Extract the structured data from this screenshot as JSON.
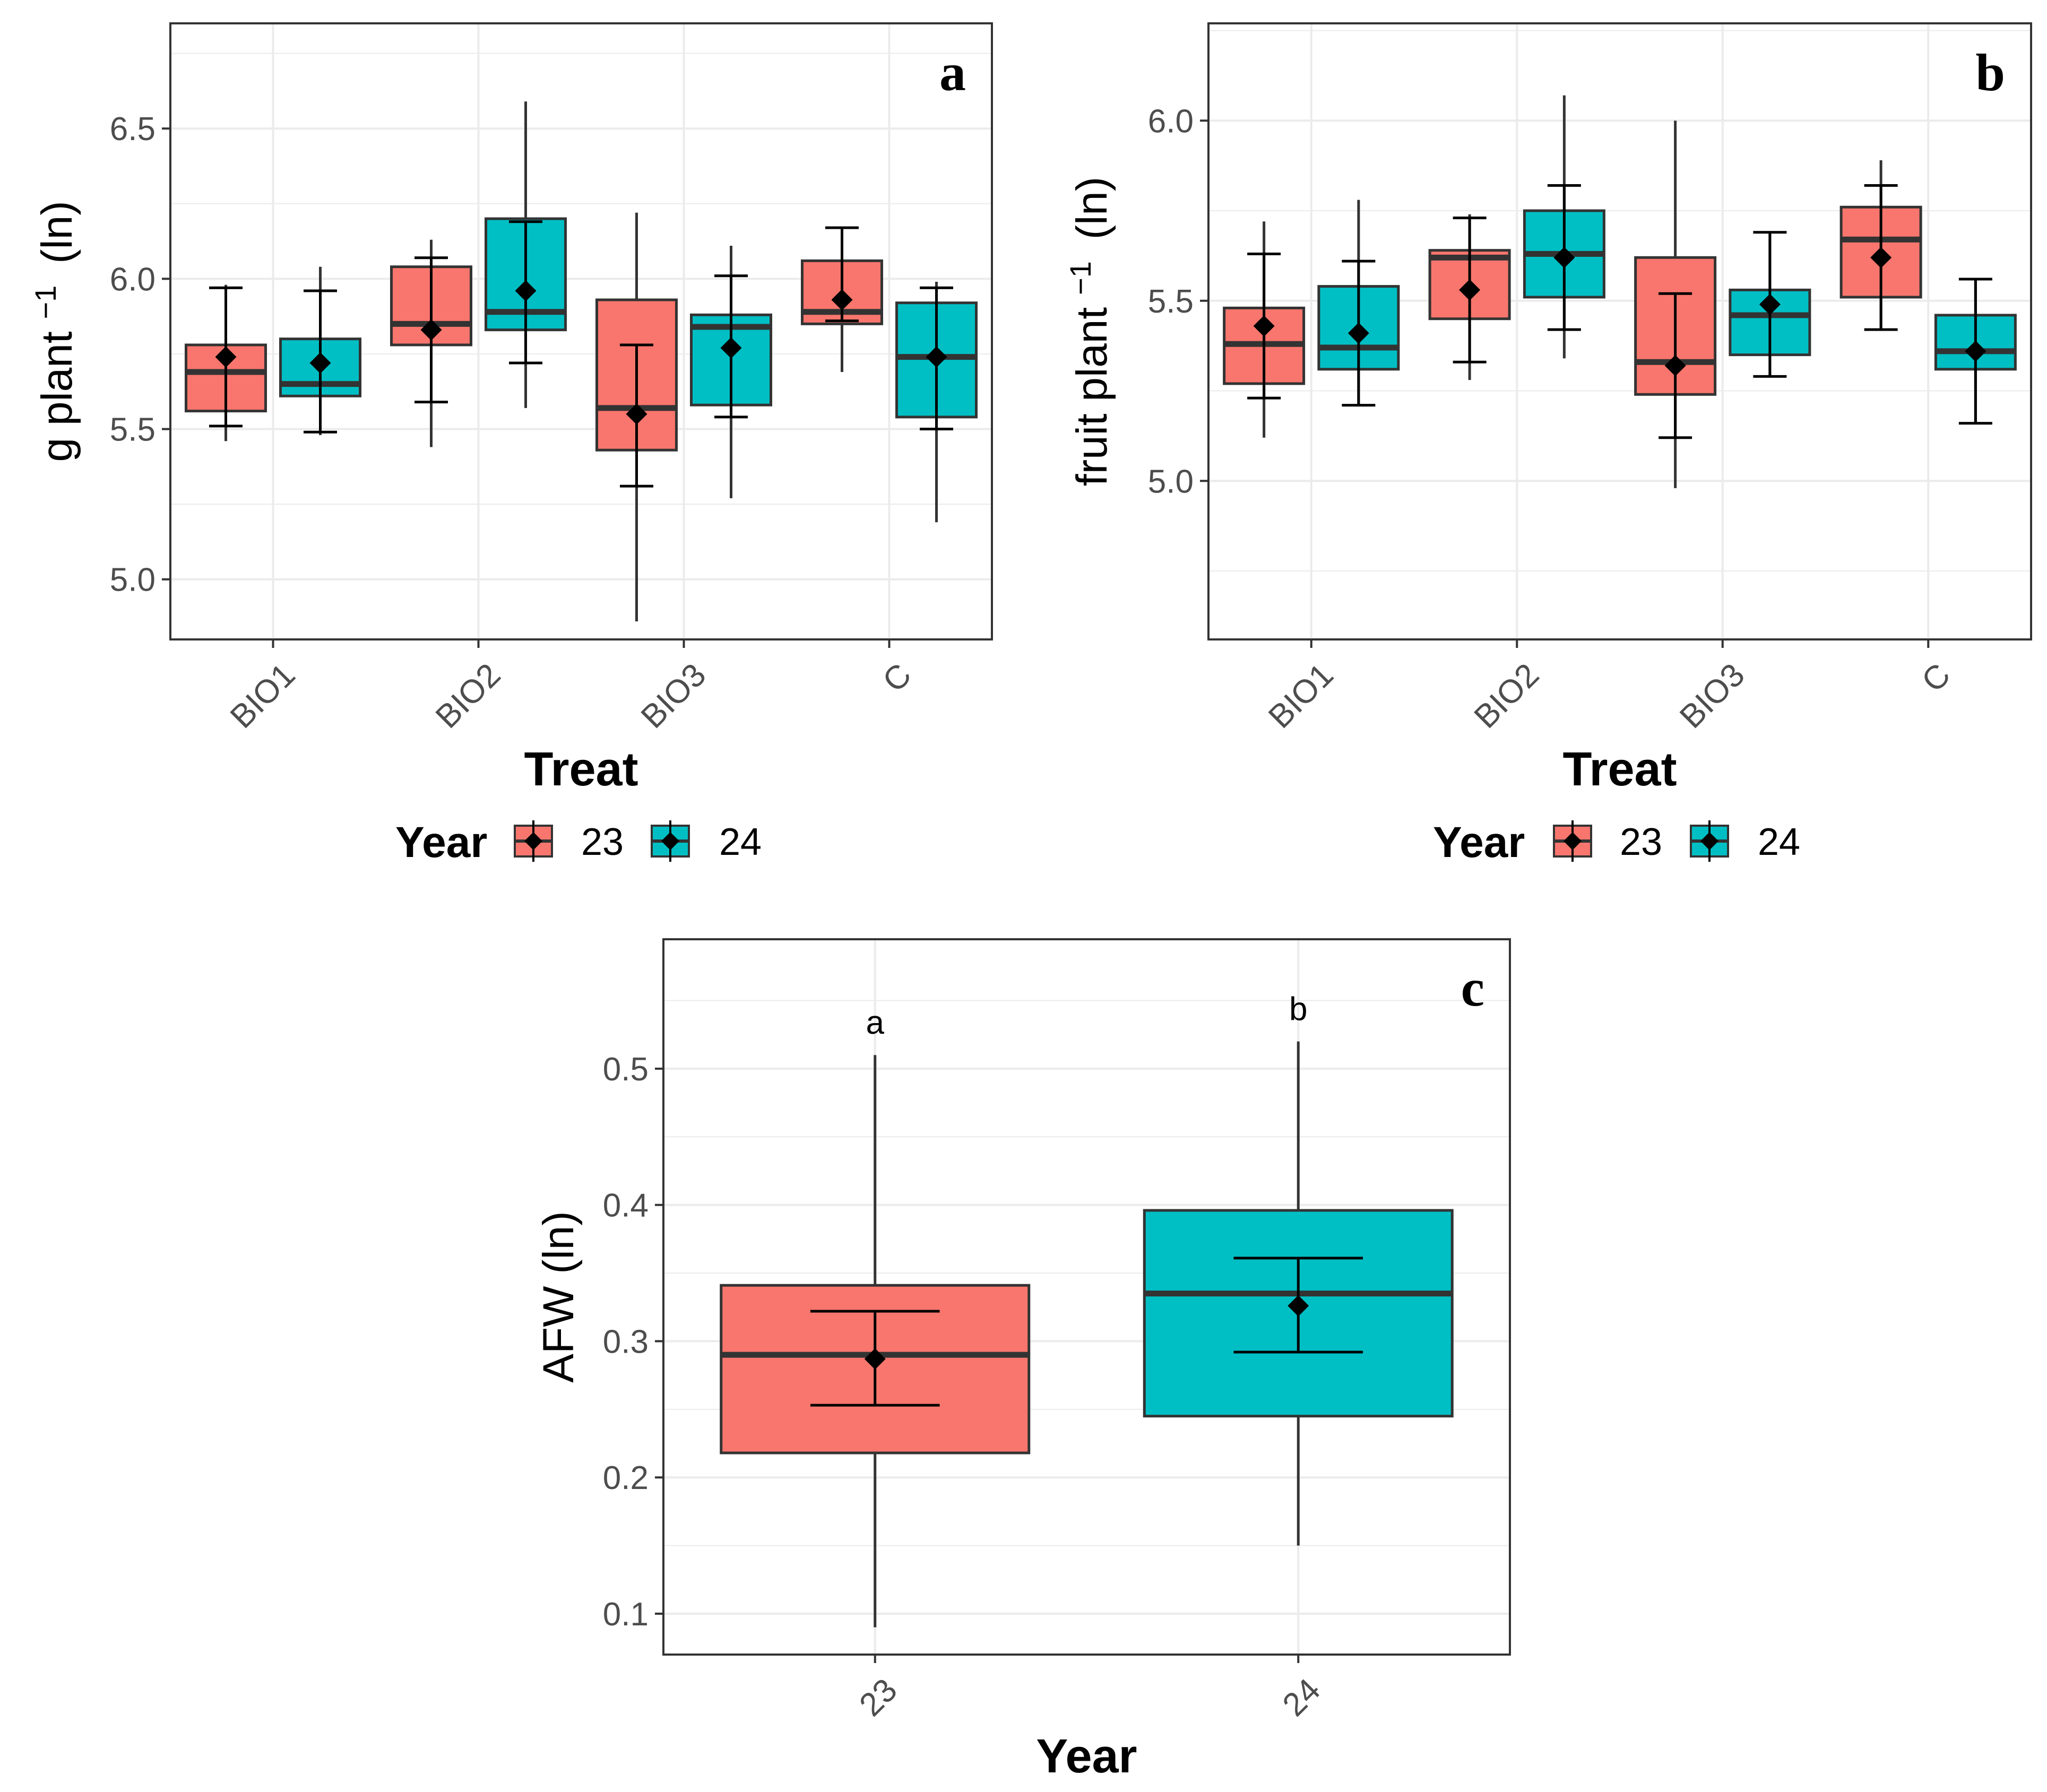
{
  "colors": {
    "year_23": "#F8766D",
    "year_24": "#00BFC4",
    "grid": "#ebebeb",
    "panel_border": "#333333",
    "box_line": "#333333",
    "mean_marker": "#000000"
  },
  "chart_data": [
    {
      "type": "box",
      "panel_label": "a",
      "ylabel": "g plant⁻¹ (ln)",
      "ylabel_main": "g plant",
      "ylabel_sup": "−1",
      "ylabel_unit": "(ln)",
      "xlabel": "Treat",
      "ylim": [
        4.8,
        6.85
      ],
      "yticks": [
        5.0,
        5.5,
        6.0,
        6.5
      ],
      "ytick_labels": [
        "5.0",
        "5.5",
        "6.0",
        "6.5"
      ],
      "categories": [
        "BIO1",
        "BIO2",
        "BIO3",
        "C"
      ],
      "legend": {
        "title": "Year",
        "labels": [
          "23",
          "24"
        ],
        "position": "bottom"
      },
      "series": [
        {
          "name": "23",
          "boxes": [
            {
              "whisker_low": 5.46,
              "q1": 5.56,
              "median": 5.69,
              "q3": 5.78,
              "whisker_high": 5.98,
              "mean": 5.74,
              "ci_low": 5.51,
              "ci_high": 5.97
            },
            {
              "whisker_low": 5.44,
              "q1": 5.78,
              "median": 5.85,
              "q3": 6.04,
              "whisker_high": 6.13,
              "mean": 5.83,
              "ci_low": 5.59,
              "ci_high": 6.07
            },
            {
              "whisker_low": 4.86,
              "q1": 5.43,
              "median": 5.57,
              "q3": 5.93,
              "whisker_high": 6.22,
              "mean": 5.55,
              "ci_low": 5.31,
              "ci_high": 5.78
            },
            {
              "whisker_low": 5.69,
              "q1": 5.85,
              "median": 5.89,
              "q3": 6.06,
              "whisker_high": 6.17,
              "mean": 5.93,
              "ci_low": 5.86,
              "ci_high": 6.17
            }
          ]
        },
        {
          "name": "24",
          "boxes": [
            {
              "whisker_low": 5.48,
              "q1": 5.61,
              "median": 5.65,
              "q3": 5.8,
              "whisker_high": 6.04,
              "mean": 5.72,
              "ci_low": 5.49,
              "ci_high": 5.96
            },
            {
              "whisker_low": 5.57,
              "q1": 5.83,
              "median": 5.89,
              "q3": 6.2,
              "whisker_high": 6.59,
              "mean": 5.96,
              "ci_low": 5.72,
              "ci_high": 6.19
            },
            {
              "whisker_low": 5.27,
              "q1": 5.58,
              "median": 5.84,
              "q3": 5.88,
              "whisker_high": 6.11,
              "mean": 5.77,
              "ci_low": 5.54,
              "ci_high": 6.01
            },
            {
              "whisker_low": 5.19,
              "q1": 5.54,
              "median": 5.74,
              "q3": 5.92,
              "whisker_high": 5.99,
              "mean": 5.74,
              "ci_low": 5.5,
              "ci_high": 5.97
            }
          ]
        }
      ]
    },
    {
      "type": "box",
      "panel_label": "b",
      "ylabel": "fruit plant⁻¹ (ln)",
      "ylabel_main": "fruit plant",
      "ylabel_sup": "−1",
      "ylabel_unit": "(ln)",
      "xlabel": "Treat",
      "ylim": [
        4.56,
        6.27
      ],
      "yticks": [
        5.0,
        5.5,
        6.0
      ],
      "ytick_labels": [
        "5.0",
        "5.5",
        "6.0"
      ],
      "categories": [
        "BIO1",
        "BIO2",
        "BIO3",
        "C"
      ],
      "legend": {
        "title": "Year",
        "labels": [
          "23",
          "24"
        ],
        "position": "bottom"
      },
      "series": [
        {
          "name": "23",
          "boxes": [
            {
              "whisker_low": 5.12,
              "q1": 5.27,
              "median": 5.38,
              "q3": 5.48,
              "whisker_high": 5.72,
              "mean": 5.43,
              "ci_low": 5.23,
              "ci_high": 5.63
            },
            {
              "whisker_low": 5.28,
              "q1": 5.45,
              "median": 5.62,
              "q3": 5.64,
              "whisker_high": 5.74,
              "mean": 5.53,
              "ci_low": 5.33,
              "ci_high": 5.73
            },
            {
              "whisker_low": 4.98,
              "q1": 5.24,
              "median": 5.33,
              "q3": 5.62,
              "whisker_high": 6.0,
              "mean": 5.32,
              "ci_low": 5.12,
              "ci_high": 5.52
            },
            {
              "whisker_low": 5.42,
              "q1": 5.51,
              "median": 5.67,
              "q3": 5.76,
              "whisker_high": 5.89,
              "mean": 5.62,
              "ci_low": 5.42,
              "ci_high": 5.82
            }
          ]
        },
        {
          "name": "24",
          "boxes": [
            {
              "whisker_low": 5.21,
              "q1": 5.31,
              "median": 5.37,
              "q3": 5.54,
              "whisker_high": 5.78,
              "mean": 5.41,
              "ci_low": 5.21,
              "ci_high": 5.61
            },
            {
              "whisker_low": 5.34,
              "q1": 5.51,
              "median": 5.63,
              "q3": 5.75,
              "whisker_high": 6.07,
              "mean": 5.62,
              "ci_low": 5.42,
              "ci_high": 5.82
            },
            {
              "whisker_low": 5.29,
              "q1": 5.35,
              "median": 5.46,
              "q3": 5.53,
              "whisker_high": 5.69,
              "mean": 5.49,
              "ci_low": 5.29,
              "ci_high": 5.69
            },
            {
              "whisker_low": 5.16,
              "q1": 5.31,
              "median": 5.36,
              "q3": 5.46,
              "whisker_high": 5.56,
              "mean": 5.36,
              "ci_low": 5.16,
              "ci_high": 5.56
            }
          ]
        }
      ]
    },
    {
      "type": "box",
      "panel_label": "c",
      "ylabel": "AFW (ln)",
      "xlabel": "Year",
      "ylim": [
        0.07,
        0.595
      ],
      "yticks": [
        0.1,
        0.2,
        0.3,
        0.4,
        0.5
      ],
      "ytick_labels": [
        "0.1",
        "0.2",
        "0.3",
        "0.4",
        "0.5"
      ],
      "categories": [
        "23",
        "24"
      ],
      "significance_letters": [
        "a",
        "b"
      ],
      "boxes": [
        {
          "name": "23",
          "whisker_low": 0.09,
          "q1": 0.218,
          "median": 0.29,
          "q3": 0.341,
          "whisker_high": 0.51,
          "mean": 0.287,
          "ci_low": 0.253,
          "ci_high": 0.322
        },
        {
          "name": "24",
          "whisker_low": 0.15,
          "q1": 0.245,
          "median": 0.335,
          "q3": 0.396,
          "whisker_high": 0.52,
          "mean": 0.326,
          "ci_low": 0.292,
          "ci_high": 0.361
        }
      ]
    }
  ]
}
